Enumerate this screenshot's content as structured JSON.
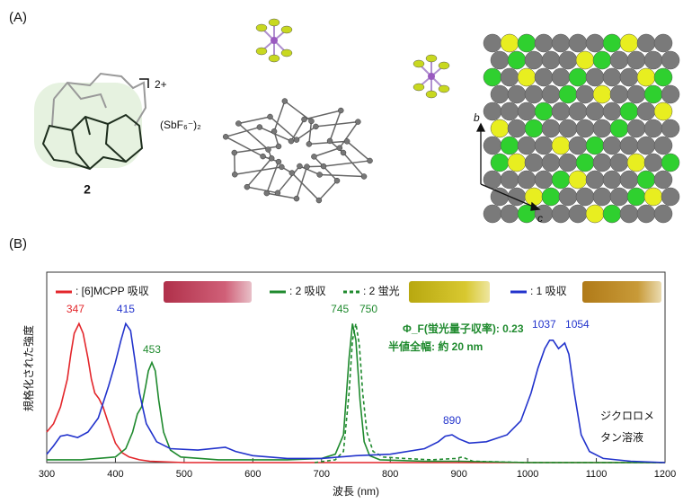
{
  "panel_labels": [
    "(A)",
    "(B)"
  ],
  "panel_a": {
    "charge": "2+",
    "counterion": "(SbF₆⁻)₂",
    "compound": "2",
    "axis_b": "b",
    "axis_c": "c"
  },
  "chart_data": {
    "type": "line",
    "x_label": "波長 (nm)",
    "y_label": "規格化された強度",
    "xlim": [
      300,
      1200
    ],
    "xticks": [
      300,
      400,
      500,
      600,
      700,
      800,
      900,
      1000,
      1100,
      1200
    ],
    "ylim": [
      0,
      1.37
    ],
    "series": [
      {
        "name": ": [6]MCPP 吸収",
        "color": "#e3262b",
        "dash": false,
        "x": [
          300,
          310,
          320,
          330,
          335,
          340,
          347,
          353,
          360,
          365,
          370,
          376,
          382,
          390,
          400,
          410,
          420,
          435,
          450,
          500,
          600,
          1200
        ],
        "values": [
          0.22,
          0.28,
          0.4,
          0.6,
          0.78,
          0.93,
          1.0,
          0.93,
          0.75,
          0.6,
          0.5,
          0.46,
          0.4,
          0.28,
          0.14,
          0.07,
          0.04,
          0.02,
          0.01,
          0.0,
          0.0,
          0.0
        ]
      },
      {
        "name": ": 2 吸収",
        "color": "#1f8a2e",
        "dash": false,
        "x": [
          300,
          350,
          400,
          415,
          425,
          432,
          438,
          444,
          448,
          453,
          458,
          463,
          470,
          480,
          495,
          550,
          650,
          700,
          720,
          732,
          740,
          745,
          750,
          756,
          762,
          770,
          785,
          850,
          900,
          1000,
          1200
        ],
        "values": [
          0.02,
          0.02,
          0.04,
          0.1,
          0.22,
          0.35,
          0.4,
          0.55,
          0.66,
          0.72,
          0.66,
          0.45,
          0.22,
          0.09,
          0.04,
          0.02,
          0.02,
          0.03,
          0.06,
          0.2,
          0.75,
          1.0,
          0.88,
          0.45,
          0.15,
          0.05,
          0.02,
          0.01,
          0.01,
          0.0,
          0.0
        ]
      },
      {
        "name": ": 2 蛍光",
        "color": "#1f8a2e",
        "dash": true,
        "x": [
          690,
          720,
          732,
          740,
          745,
          750,
          755,
          760,
          766,
          775,
          790,
          820,
          860,
          895,
          905,
          920,
          1000,
          1200
        ],
        "values": [
          0.0,
          0.02,
          0.08,
          0.5,
          0.88,
          1.0,
          0.85,
          0.5,
          0.22,
          0.08,
          0.04,
          0.03,
          0.02,
          0.03,
          0.04,
          0.01,
          0.0,
          0.0
        ]
      },
      {
        "name": ": 1 吸収",
        "color": "#2233cc",
        "dash": false,
        "x": [
          300,
          310,
          320,
          330,
          345,
          360,
          375,
          390,
          400,
          408,
          415,
          422,
          428,
          435,
          445,
          460,
          480,
          520,
          560,
          575,
          600,
          650,
          700,
          750,
          800,
          850,
          870,
          880,
          890,
          900,
          915,
          940,
          970,
          990,
          1005,
          1015,
          1025,
          1032,
          1037,
          1045,
          1054,
          1060,
          1068,
          1078,
          1090,
          1110,
          1150,
          1200
        ],
        "values": [
          0.06,
          0.12,
          0.19,
          0.2,
          0.18,
          0.22,
          0.32,
          0.55,
          0.72,
          0.88,
          1.0,
          0.95,
          0.75,
          0.5,
          0.28,
          0.15,
          0.1,
          0.09,
          0.11,
          0.08,
          0.05,
          0.03,
          0.03,
          0.05,
          0.06,
          0.1,
          0.15,
          0.19,
          0.2,
          0.17,
          0.14,
          0.15,
          0.2,
          0.3,
          0.5,
          0.68,
          0.82,
          0.88,
          0.88,
          0.82,
          0.86,
          0.78,
          0.5,
          0.2,
          0.08,
          0.03,
          0.01,
          0.0
        ]
      }
    ],
    "peak_labels": [
      {
        "x": 347,
        "color": "#e3262b",
        "y": 1.06
      },
      {
        "x": 415,
        "color": "#2233cc",
        "y": 1.06
      },
      {
        "x": 453,
        "color": "#1f8a2e",
        "y": 0.77
      },
      {
        "x": 745,
        "color": "#1f8a2e",
        "y": 1.06
      },
      {
        "x": 750,
        "color": "#1f8a2e",
        "y": 1.06
      },
      {
        "x": 890,
        "color": "#2233cc",
        "y": 0.26
      },
      {
        "x": 1037,
        "color": "#2233cc",
        "y": 0.95
      },
      {
        "x": 1054,
        "color": "#2233cc",
        "y": 0.95
      }
    ],
    "annotations": {
      "quantum_yield": "Φ_F(蛍光量子収率): 0.23",
      "fwhm": "半値全幅: 約 20 nm",
      "solvent_1": "ジクロロメ",
      "solvent_2": "タン溶液"
    }
  }
}
